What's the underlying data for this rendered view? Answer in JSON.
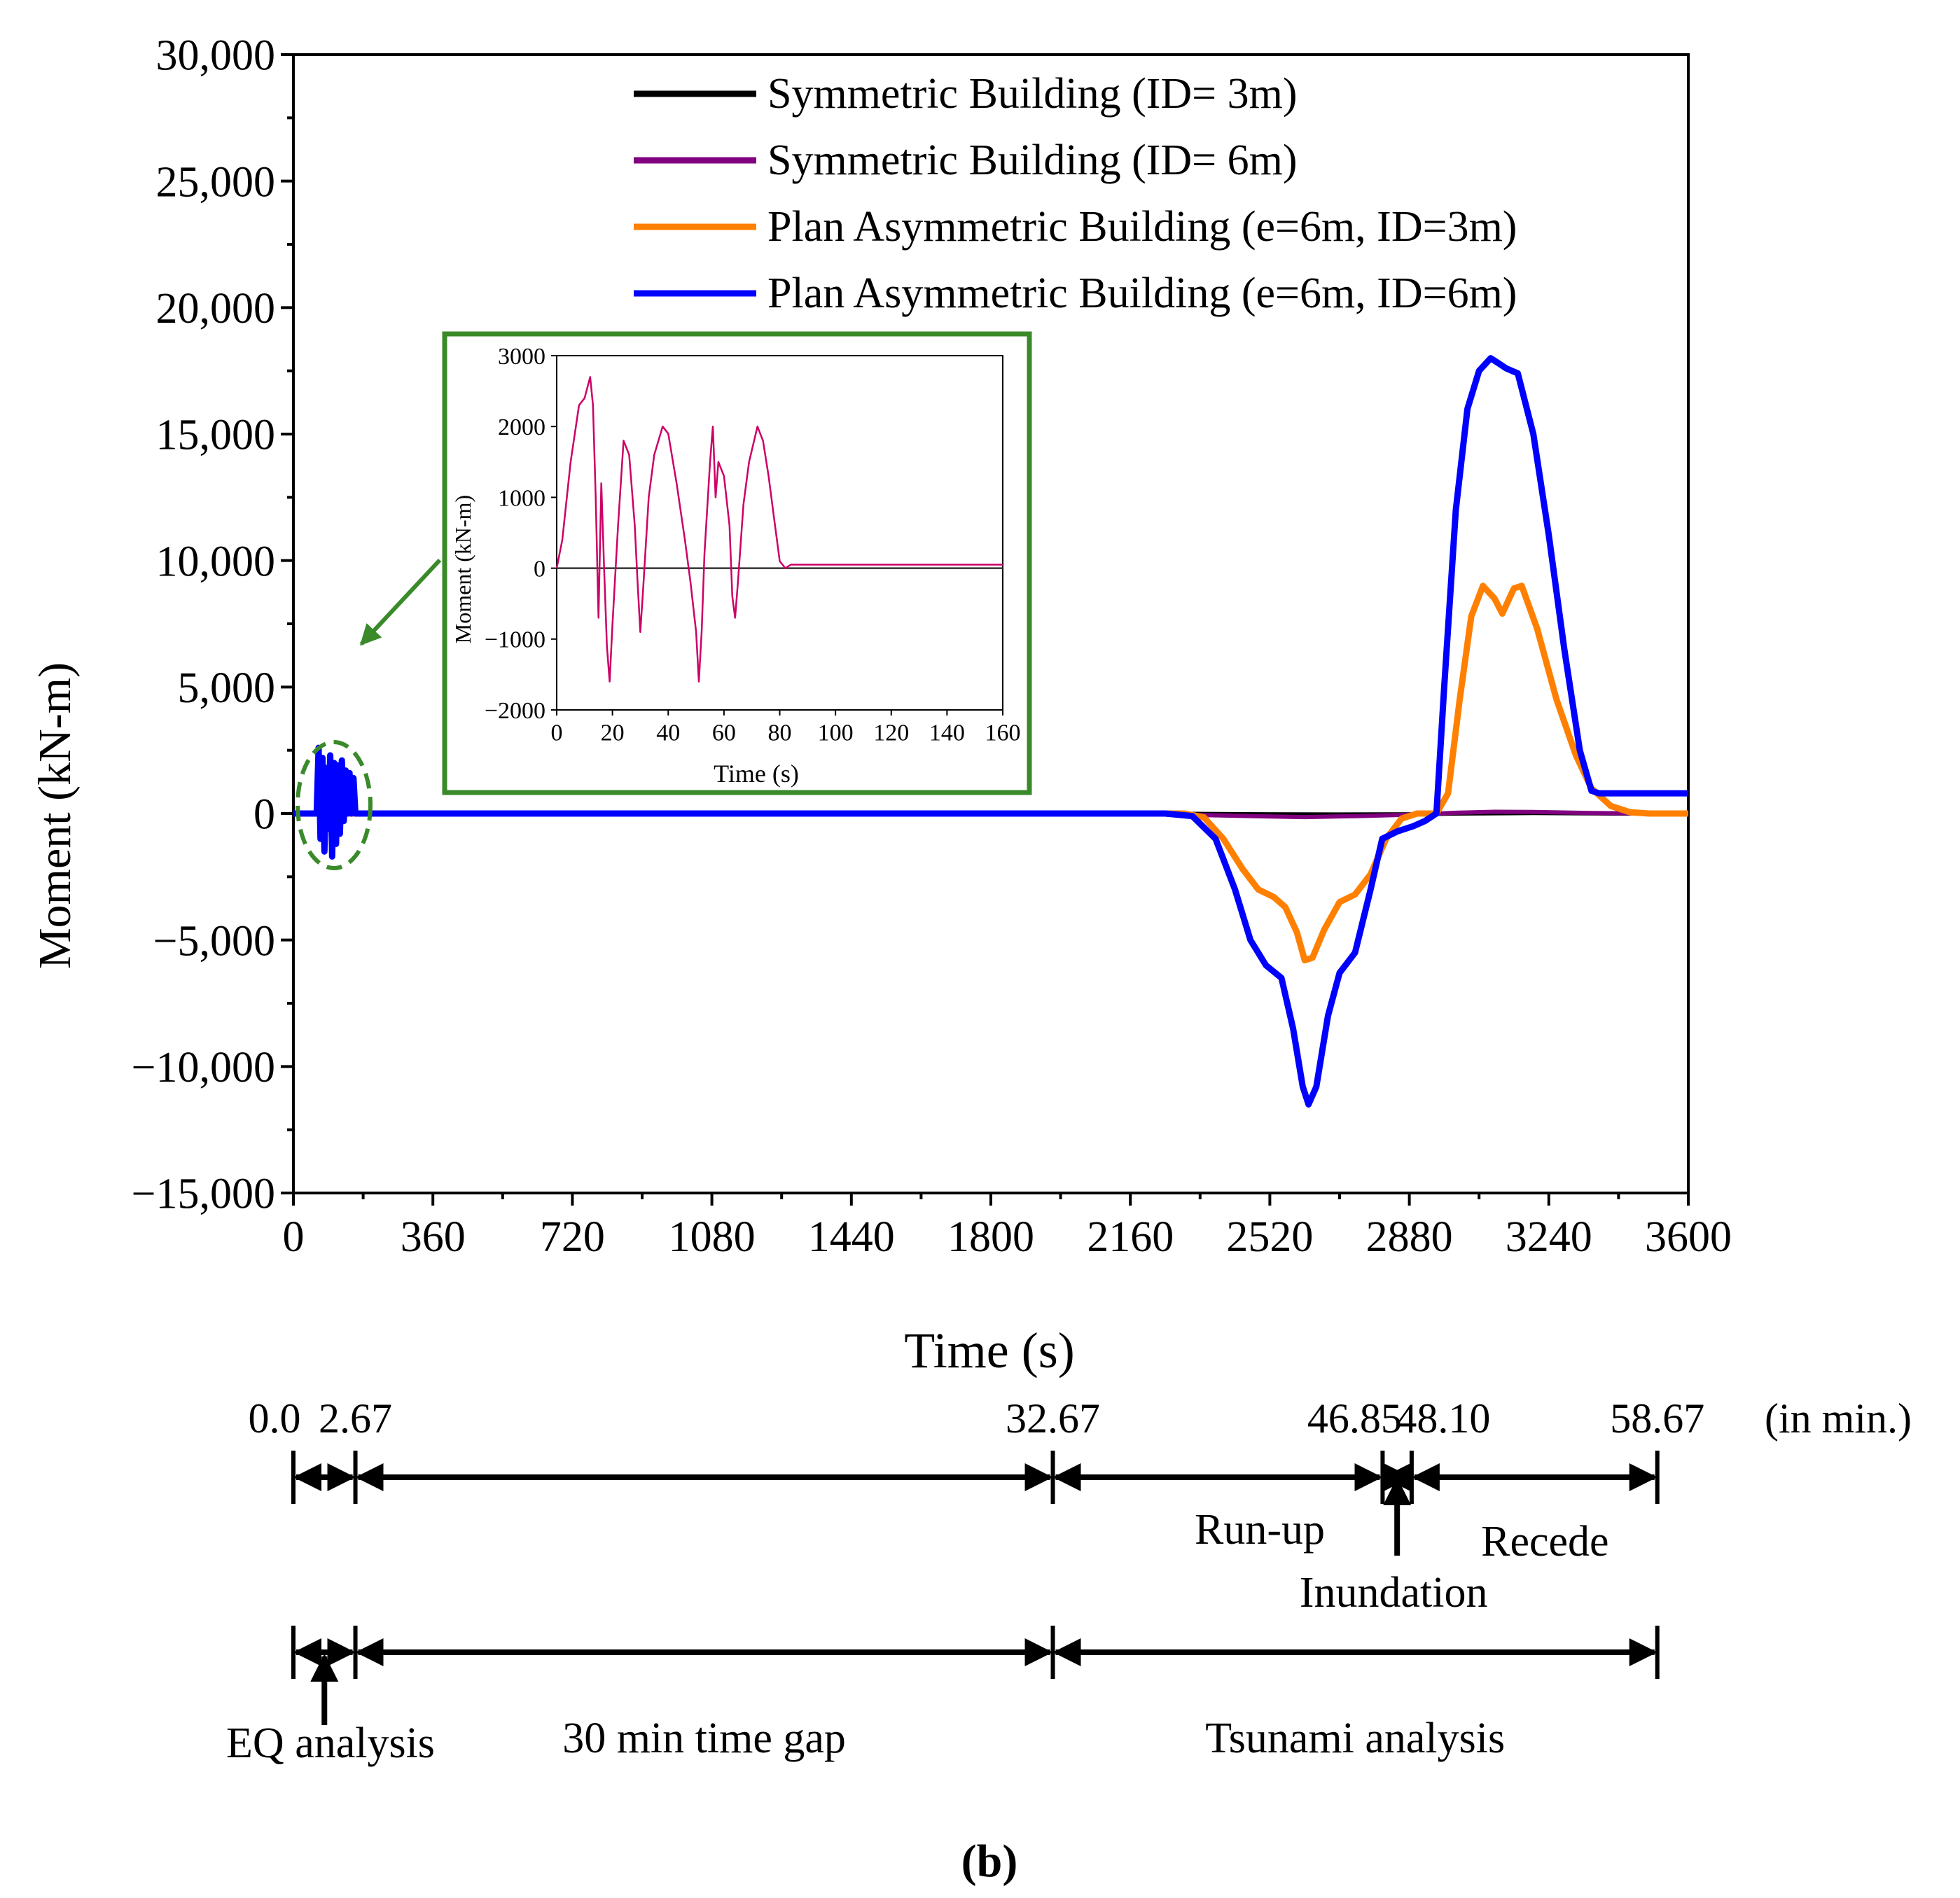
{
  "chart_data": {
    "type": "line",
    "xlabel": "Time (s)",
    "ylabel": "Moment (kN-m)",
    "xlim": [
      0,
      3600
    ],
    "ylim": [
      -15000,
      30000
    ],
    "x_ticks": [
      0,
      360,
      720,
      1080,
      1440,
      1800,
      2160,
      2520,
      2880,
      3240,
      3600
    ],
    "x_tick_labels": [
      "0",
      "360",
      "720",
      "1080",
      "1440",
      "1800",
      "2160",
      "2520",
      "2880",
      "3240",
      "3600"
    ],
    "y_ticks": [
      30000,
      25000,
      20000,
      15000,
      10000,
      5000,
      0,
      -5000,
      -10000,
      -15000
    ],
    "y_tick_labels": [
      "30,000",
      "25,000",
      "20,000",
      "15,000",
      "10,000",
      "5,000",
      "0",
      "−5,000",
      "−10,000",
      "−15,000"
    ],
    "legend_position": "top-right",
    "series": [
      {
        "name": "Symmetric Building (ID= 3m)",
        "color": "#000000",
        "points": [
          [
            0,
            0
          ],
          [
            2200,
            0
          ],
          [
            2500,
            -30
          ],
          [
            2700,
            -40
          ],
          [
            2900,
            -30
          ],
          [
            3000,
            0
          ],
          [
            3200,
            20
          ],
          [
            3400,
            0
          ],
          [
            3600,
            0
          ]
        ]
      },
      {
        "name": "Symmetric Building (ID= 6m)",
        "color": "#800080",
        "points": [
          [
            0,
            0
          ],
          [
            2200,
            0
          ],
          [
            2350,
            -60
          ],
          [
            2500,
            -110
          ],
          [
            2610,
            -140
          ],
          [
            2750,
            -100
          ],
          [
            2900,
            -40
          ],
          [
            3000,
            30
          ],
          [
            3100,
            70
          ],
          [
            3200,
            60
          ],
          [
            3350,
            20
          ],
          [
            3500,
            0
          ],
          [
            3600,
            0
          ]
        ]
      },
      {
        "name": "Plan Asymmetric Building (e=6m, ID=3m)",
        "color": "#FF8000",
        "points": [
          [
            0,
            0
          ],
          [
            2300,
            0
          ],
          [
            2350,
            -150
          ],
          [
            2400,
            -1000
          ],
          [
            2450,
            -2200
          ],
          [
            2490,
            -3000
          ],
          [
            2530,
            -3300
          ],
          [
            2560,
            -3700
          ],
          [
            2590,
            -4700
          ],
          [
            2610,
            -5800
          ],
          [
            2630,
            -5700
          ],
          [
            2660,
            -4600
          ],
          [
            2700,
            -3500
          ],
          [
            2740,
            -3200
          ],
          [
            2780,
            -2400
          ],
          [
            2820,
            -1000
          ],
          [
            2860,
            -200
          ],
          [
            2900,
            0
          ],
          [
            2950,
            0
          ],
          [
            2980,
            800
          ],
          [
            3010,
            4500
          ],
          [
            3040,
            7800
          ],
          [
            3070,
            9000
          ],
          [
            3100,
            8500
          ],
          [
            3120,
            7900
          ],
          [
            3150,
            8900
          ],
          [
            3170,
            9000
          ],
          [
            3210,
            7300
          ],
          [
            3260,
            4500
          ],
          [
            3310,
            2300
          ],
          [
            3350,
            1000
          ],
          [
            3400,
            300
          ],
          [
            3450,
            50
          ],
          [
            3500,
            0
          ],
          [
            3600,
            0
          ]
        ]
      },
      {
        "name": "Plan Asymmetric Building (e=6m, ID=6m)",
        "color": "#0000FF",
        "points": [
          [
            0,
            0
          ],
          [
            60,
            0
          ],
          [
            65,
            2600
          ],
          [
            70,
            -1000
          ],
          [
            75,
            2200
          ],
          [
            80,
            -1500
          ],
          [
            85,
            1800
          ],
          [
            90,
            -600
          ],
          [
            95,
            2300
          ],
          [
            100,
            -1700
          ],
          [
            105,
            2000
          ],
          [
            110,
            -1200
          ],
          [
            115,
            1900
          ],
          [
            120,
            -800
          ],
          [
            125,
            2100
          ],
          [
            130,
            -300
          ],
          [
            135,
            1700
          ],
          [
            140,
            0
          ],
          [
            145,
            1600
          ],
          [
            150,
            0
          ],
          [
            155,
            1400
          ],
          [
            160,
            0
          ],
          [
            2250,
            0
          ],
          [
            2320,
            -100
          ],
          [
            2380,
            -1000
          ],
          [
            2430,
            -3000
          ],
          [
            2470,
            -5000
          ],
          [
            2510,
            -6000
          ],
          [
            2550,
            -6500
          ],
          [
            2580,
            -8500
          ],
          [
            2605,
            -10800
          ],
          [
            2620,
            -11500
          ],
          [
            2640,
            -10800
          ],
          [
            2670,
            -8000
          ],
          [
            2700,
            -6300
          ],
          [
            2740,
            -5500
          ],
          [
            2780,
            -3000
          ],
          [
            2810,
            -1000
          ],
          [
            2850,
            -700
          ],
          [
            2890,
            -500
          ],
          [
            2920,
            -300
          ],
          [
            2950,
            0
          ],
          [
            2970,
            5000
          ],
          [
            3000,
            12000
          ],
          [
            3030,
            16000
          ],
          [
            3060,
            17500
          ],
          [
            3090,
            18000
          ],
          [
            3110,
            17800
          ],
          [
            3130,
            17600
          ],
          [
            3160,
            17400
          ],
          [
            3200,
            15000
          ],
          [
            3240,
            11000
          ],
          [
            3280,
            6500
          ],
          [
            3320,
            2500
          ],
          [
            3350,
            900
          ],
          [
            3370,
            800
          ],
          [
            3600,
            800
          ]
        ]
      }
    ],
    "inset": {
      "xlabel": "Time (s)",
      "ylabel": "Moment (kN-m)",
      "xlim": [
        0,
        160
      ],
      "ylim": [
        -2000,
        3000
      ],
      "x_ticks": [
        0,
        20,
        40,
        60,
        80,
        100,
        120,
        140,
        160
      ],
      "x_tick_labels": [
        "0",
        "20",
        "40",
        "60",
        "80",
        "100",
        "120",
        "140",
        "160"
      ],
      "y_ticks": [
        3000,
        2000,
        1000,
        0,
        -1000,
        -2000
      ],
      "y_tick_labels": [
        "3000",
        "2000",
        "1000",
        "0",
        "−1000",
        "−2000"
      ],
      "series": [
        {
          "name": "Symmetric Building (ID= 3m)",
          "color": "#333333",
          "points": [
            [
              0,
              0
            ],
            [
              160,
              0
            ]
          ]
        },
        {
          "name": "Plan Asymmetric Building (e=6m, ID=6m)",
          "color": "#CC0066",
          "points": [
            [
              0,
              0
            ],
            [
              2,
              400
            ],
            [
              5,
              1500
            ],
            [
              8,
              2300
            ],
            [
              10,
              2400
            ],
            [
              12,
              2700
            ],
            [
              13,
              2300
            ],
            [
              14,
              1000
            ],
            [
              15,
              -700
            ],
            [
              16,
              1200
            ],
            [
              17,
              0
            ],
            [
              18,
              -1100
            ],
            [
              19,
              -1600
            ],
            [
              20,
              -800
            ],
            [
              22,
              600
            ],
            [
              24,
              1800
            ],
            [
              26,
              1600
            ],
            [
              27,
              1100
            ],
            [
              28,
              600
            ],
            [
              29,
              -200
            ],
            [
              30,
              -900
            ],
            [
              31,
              -300
            ],
            [
              33,
              1000
            ],
            [
              35,
              1600
            ],
            [
              38,
              2000
            ],
            [
              40,
              1900
            ],
            [
              43,
              1200
            ],
            [
              46,
              400
            ],
            [
              48,
              -200
            ],
            [
              50,
              -900
            ],
            [
              51,
              -1600
            ],
            [
              52,
              -900
            ],
            [
              53,
              200
            ],
            [
              55,
              1500
            ],
            [
              56,
              2000
            ],
            [
              57,
              1000
            ],
            [
              58,
              1500
            ],
            [
              60,
              1300
            ],
            [
              62,
              600
            ],
            [
              63,
              -400
            ],
            [
              64,
              -700
            ],
            [
              65,
              -200
            ],
            [
              67,
              900
            ],
            [
              69,
              1500
            ],
            [
              72,
              2000
            ],
            [
              74,
              1800
            ],
            [
              76,
              1300
            ],
            [
              78,
              700
            ],
            [
              80,
              100
            ],
            [
              82,
              0
            ],
            [
              84,
              50
            ],
            [
              160,
              50
            ]
          ]
        }
      ]
    }
  },
  "timeline": {
    "unit_label": "(in min.)",
    "ticks": [
      {
        "label": "0.0",
        "sec": 0
      },
      {
        "label": "2.67",
        "sec": 160
      },
      {
        "label": "32.67",
        "sec": 1960
      },
      {
        "label": "46.85",
        "sec": 2811
      },
      {
        "label": "48.10",
        "sec": 2886
      },
      {
        "label": "58.67",
        "sec": 3520
      }
    ],
    "phases_top": [
      "Run-up",
      "Inundation",
      "Recede"
    ],
    "phases_bottom": [
      "EQ analysis",
      "30 min time gap",
      "Tsunami analysis"
    ]
  },
  "caption": "(b)"
}
